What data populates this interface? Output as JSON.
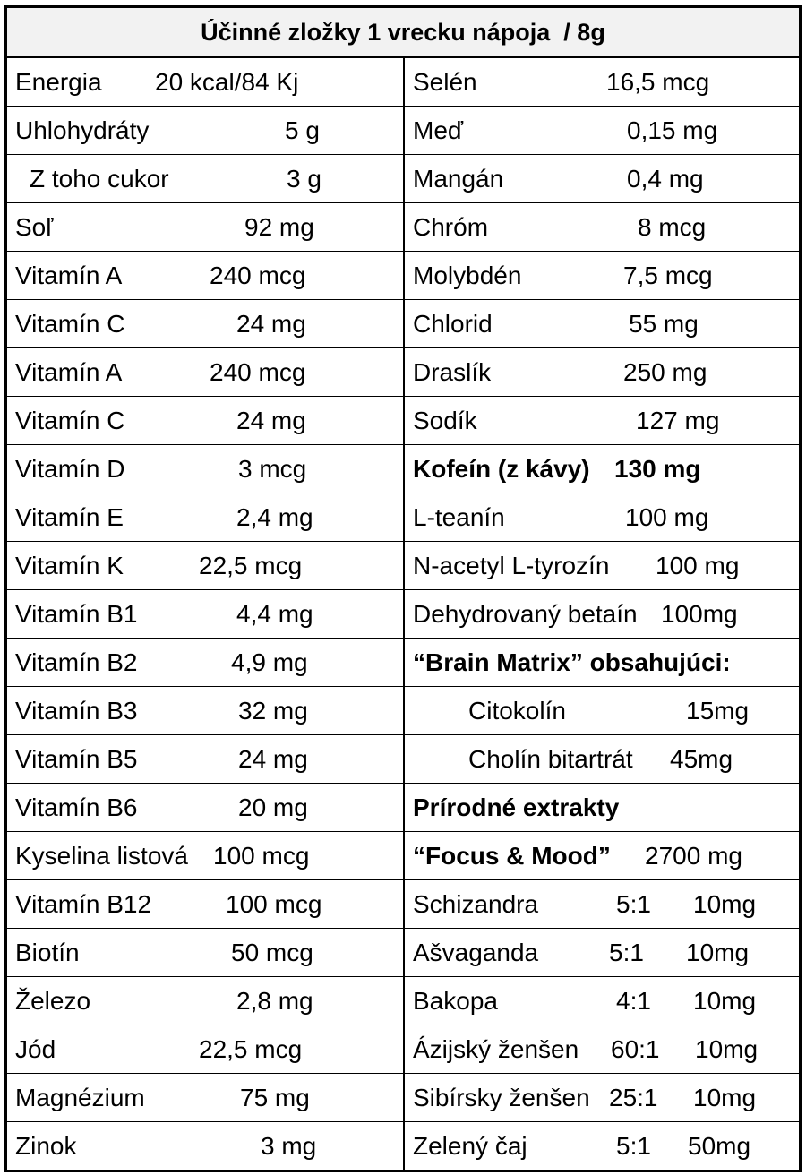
{
  "title": "Účinné zložky 1 vrecku nápoja  / 8g",
  "left": [
    {
      "name": "Energia",
      "value": "20 kcal/84 Kj"
    },
    {
      "name": "Uhlohydráty",
      "value": "5 g"
    },
    {
      "name": "Z toho cukor",
      "value": "3 g"
    },
    {
      "name": "Soľ",
      "value": "92 mg"
    },
    {
      "name": "Vitamín A",
      "value": "240 mcg"
    },
    {
      "name": "Vitamín C",
      "value": "24 mg"
    },
    {
      "name": "Vitamín A",
      "value": "240 mcg"
    },
    {
      "name": "Vitamín C",
      "value": "24 mg"
    },
    {
      "name": "Vitamín D",
      "value": "3 mcg"
    },
    {
      "name": "Vitamín E",
      "value": "2,4 mg"
    },
    {
      "name": "Vitamín K",
      "value": "22,5 mcg"
    },
    {
      "name": "Vitamín B1",
      "value": "4,4 mg"
    },
    {
      "name": "Vitamín B2",
      "value": "4,9 mg"
    },
    {
      "name": "Vitamín B3",
      "value": "32 mg"
    },
    {
      "name": "Vitamín B5",
      "value": "24 mg"
    },
    {
      "name": "Vitamín B6",
      "value": "20 mg"
    },
    {
      "name": "Kyselina listová",
      "value": "100 mcg"
    },
    {
      "name": "Vitamín B12",
      "value": "100 mcg"
    },
    {
      "name": "Biotín",
      "value": "50 mcg"
    },
    {
      "name": "Železo",
      "value": "2,8 mg"
    },
    {
      "name": "Jód",
      "value": "22,5 mcg"
    },
    {
      "name": "Magnézium",
      "value": "75 mg"
    },
    {
      "name": "Zinok",
      "value": "3 mg"
    }
  ],
  "right": [
    {
      "name": "Selén",
      "ratio": "",
      "value": "16,5 mcg"
    },
    {
      "name": "Meď",
      "ratio": "",
      "value": "0,15 mg"
    },
    {
      "name": "Mangán",
      "ratio": "",
      "value": "0,4 mg"
    },
    {
      "name": "Chróm",
      "ratio": "",
      "value": "8 mcg"
    },
    {
      "name": "Molybdén",
      "ratio": "",
      "value": "7,5 mcg"
    },
    {
      "name": "Chlorid",
      "ratio": "",
      "value": "55 mg"
    },
    {
      "name": "Draslík",
      "ratio": "",
      "value": "250 mg"
    },
    {
      "name": "Sodík",
      "ratio": "",
      "value": "127 mg"
    },
    {
      "name": "Kofeín (z kávy)",
      "ratio": "",
      "value": "130 mg"
    },
    {
      "name": "L-teanín",
      "ratio": "",
      "value": "100 mg"
    },
    {
      "name": "N-acetyl L-tyrozín",
      "ratio": "",
      "value": "100 mg"
    },
    {
      "name": "Dehydrovaný betaín",
      "ratio": "",
      "value": "100mg"
    },
    {
      "name": "“Brain Matrix” obsahujúci:",
      "ratio": "",
      "value": ""
    },
    {
      "name": "Citokolín",
      "ratio": "",
      "value": "15mg"
    },
    {
      "name": "Cholín bitartrát",
      "ratio": "",
      "value": "45mg"
    },
    {
      "name": "Prírodné extrakty",
      "ratio": "",
      "value": ""
    },
    {
      "name": "“Focus & Mood”",
      "ratio": "",
      "value": "2700 mg"
    },
    {
      "name": "Schizandra",
      "ratio": "5:1",
      "value": "10mg"
    },
    {
      "name": "Ašvaganda",
      "ratio": "5:1",
      "value": "10mg"
    },
    {
      "name": "Bakopa",
      "ratio": "4:1",
      "value": "10mg"
    },
    {
      "name": "Ázijský ženšen",
      "ratio": "60:1",
      "value": "10mg"
    },
    {
      "name": "Sibírsky ženšen",
      "ratio": "25:1",
      "value": "10mg"
    },
    {
      "name": "Zelený čaj",
      "ratio": "5:1",
      "value": "50mg"
    }
  ]
}
